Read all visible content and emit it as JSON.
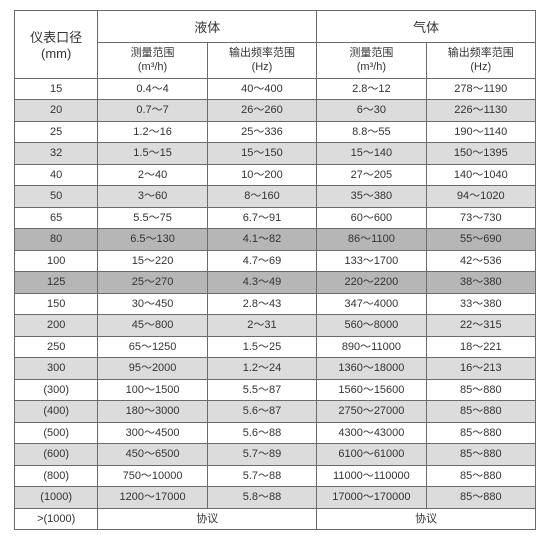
{
  "header": {
    "col0_line1": "仪表口径",
    "col0_line2": "(mm)",
    "group_liquid": "液体",
    "group_gas": "气体",
    "range_line1": "测量范围",
    "range_line2": "(m³/h)",
    "freq_line1": "输出频率范围",
    "freq_line2": "(Hz)"
  },
  "colors": {
    "bg": "#ffffff",
    "alt": "#dcdcdc",
    "dark": "#b6b6b6",
    "border": "#6b6b6b",
    "text": "#333333"
  },
  "dark_row_diameters": [
    "80",
    "125"
  ],
  "rows": [
    {
      "dia": "15",
      "lr": "0.4～4",
      "lf": "40～400",
      "gr": "2.8～12",
      "gf": "278～1190"
    },
    {
      "dia": "20",
      "lr": "0.7～7",
      "lf": "26～260",
      "gr": "6～30",
      "gf": "226～1130"
    },
    {
      "dia": "25",
      "lr": "1.2～16",
      "lf": "25～336",
      "gr": "8.8～55",
      "gf": "190～1140"
    },
    {
      "dia": "32",
      "lr": "1.5～15",
      "lf": "15～150",
      "gr": "15～140",
      "gf": "150～1395"
    },
    {
      "dia": "40",
      "lr": "2～40",
      "lf": "10～200",
      "gr": "27～205",
      "gf": "140～1040"
    },
    {
      "dia": "50",
      "lr": "3～60",
      "lf": "8～160",
      "gr": "35～380",
      "gf": "94～1020"
    },
    {
      "dia": "65",
      "lr": "5.5～75",
      "lf": "6.7～91",
      "gr": "60～600",
      "gf": "73～730"
    },
    {
      "dia": "80",
      "lr": "6.5～130",
      "lf": "4.1～82",
      "gr": "86～1100",
      "gf": "55～690"
    },
    {
      "dia": "100",
      "lr": "15～220",
      "lf": "4.7～69",
      "gr": "133～1700",
      "gf": "42～536"
    },
    {
      "dia": "125",
      "lr": "25～270",
      "lf": "4.3～49",
      "gr": "220～2200",
      "gf": "38～380"
    },
    {
      "dia": "150",
      "lr": "30～450",
      "lf": "2.8～43",
      "gr": "347～4000",
      "gf": "33～380"
    },
    {
      "dia": "200",
      "lr": "45～800",
      "lf": "2～31",
      "gr": "560～8000",
      "gf": "22～315"
    },
    {
      "dia": "250",
      "lr": "65～1250",
      "lf": "1.5～25",
      "gr": "890～11000",
      "gf": "18～221"
    },
    {
      "dia": "300",
      "lr": "95～2000",
      "lf": "1.2～24",
      "gr": "1360～18000",
      "gf": "16～213"
    },
    {
      "dia": "(300)",
      "lr": "100～1500",
      "lf": "5.5～87",
      "gr": "1560～15600",
      "gf": "85～880"
    },
    {
      "dia": "(400)",
      "lr": "180～3000",
      "lf": "5.6～87",
      "gr": "2750～27000",
      "gf": "85～880"
    },
    {
      "dia": "(500)",
      "lr": "300～4500",
      "lf": "5.6～88",
      "gr": "4300～43000",
      "gf": "85～880"
    },
    {
      "dia": "(600)",
      "lr": "450～6500",
      "lf": "5.7～89",
      "gr": "6100～61000",
      "gf": "85～880"
    },
    {
      "dia": "(800)",
      "lr": "750～10000",
      "lf": "5.7～88",
      "gr": "11000～110000",
      "gf": "85～880"
    },
    {
      "dia": "(1000)",
      "lr": "1200～17000",
      "lf": "5.8～88",
      "gr": "17000～170000",
      "gf": "85～880"
    }
  ],
  "footer": {
    "dia": ">(1000)",
    "liquid": "协议",
    "gas": "协议"
  }
}
